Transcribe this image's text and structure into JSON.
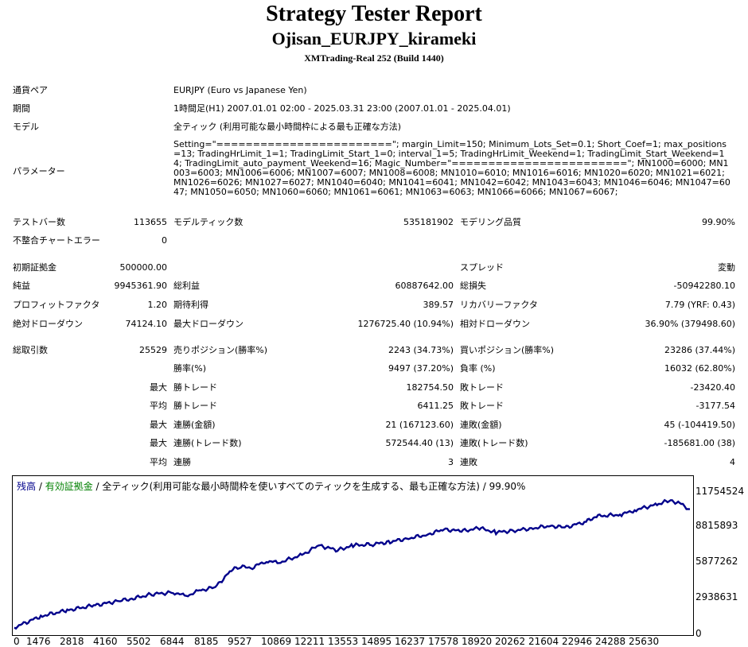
{
  "header": {
    "title": "Strategy Tester Report",
    "ea_name": "Ojisan_EURJPY_kirameki",
    "server": "XMTrading-Real 252 (Build 1440)"
  },
  "info": {
    "symbol_label": "通貨ペア",
    "symbol_value": "EURJPY (Euro vs Japanese Yen)",
    "period_label": "期間",
    "period_value": "1時間足(H1) 2007.01.01 02:00 - 2025.03.31 23:00 (2007.01.01 - 2025.04.01)",
    "model_label": "モデル",
    "model_value": "全ティック (利用可能な最小時間枠による最も正確な方法)",
    "params_label": "パラメーター",
    "params_value": "Setting=\"========================\"; margin_Limit=150; Minimum_Lots_Set=0.1; Short_Coef=1; max_positions=13; TradingHrLimit_1=1; TradingLimit_Start_1=0; interval_1=5; TradingHrLimit_Weekend=1; TradingLimit_Start_Weekend=14; TradingLimit_auto_payment_Weekend=16; Magic_Number=\"========================\"; MN1000=6000; MN1003=6003; MN1006=6006; MN1007=6007; MN1008=6008; MN1010=6010; MN1016=6016; MN1020=6020; MN1021=6021; MN1026=6026; MN1027=6027; MN1040=6040; MN1041=6041; MN1042=6042; MN1043=6043; MN1046=6046; MN1047=6047; MN1050=6050; MN1060=6060; MN1061=6061; MN1063=6063; MN1066=6066; MN1067=6067;"
  },
  "stats": {
    "bars_label": "テストバー数",
    "bars_value": "113655",
    "ticks_label": "モデルティック数",
    "ticks_value": "535181902",
    "quality_label": "モデリング品質",
    "quality_value": "99.90%",
    "mismatch_label": "不整合チャートエラー",
    "mismatch_value": "0",
    "deposit_label": "初期証拠金",
    "deposit_value": "500000.00",
    "spread_label": "スプレッド",
    "spread_value": "変動",
    "net_label": "純益",
    "net_value": "9945361.90",
    "gross_profit_label": "総利益",
    "gross_profit_value": "60887642.00",
    "gross_loss_label": "総損失",
    "gross_loss_value": "-50942280.10",
    "pf_label": "プロフィットファクタ",
    "pf_value": "1.20",
    "expected_label": "期待利得",
    "expected_value": "389.57",
    "recovery_label": "リカバリーファクタ",
    "recovery_value": "7.79 (YRF: 0.43)",
    "abs_dd_label": "絶対ドローダウン",
    "abs_dd_value": "74124.10",
    "max_dd_label": "最大ドローダウン",
    "max_dd_value": "1276725.40 (10.94%)",
    "rel_dd_label": "相対ドローダウン",
    "rel_dd_value": "36.90% (379498.60)",
    "trades_label": "総取引数",
    "trades_value": "25529",
    "short_label": "売りポジション(勝率%)",
    "short_value": "2243 (34.73%)",
    "long_label": "買いポジション(勝率%)",
    "long_value": "23286 (37.44%)",
    "win_rate_label": "勝率(%)",
    "win_rate_value": "9497 (37.20%)",
    "loss_rate_label": "負率 (%)",
    "loss_rate_value": "16032 (62.80%)",
    "max_prefix": "最大",
    "avg_prefix": "平均",
    "largest_win_label": "勝トレード",
    "largest_win_value": "182754.50",
    "largest_loss_label": "敗トレード",
    "largest_loss_value": "-23420.40",
    "avg_win_label": "勝トレード",
    "avg_win_value": "6411.25",
    "avg_loss_label": "敗トレード",
    "avg_loss_value": "-3177.54",
    "max_consec_win_money_label": "連勝(金額)",
    "max_consec_win_money_value": "21 (167123.60)",
    "max_consec_loss_money_label": "連敗(金額)",
    "max_consec_loss_money_value": "45 (-104419.50)",
    "max_consec_win_count_label": "連勝(トレード数)",
    "max_consec_win_count_value": "572544.40 (13)",
    "max_consec_loss_count_label": "連敗(トレード数)",
    "max_consec_loss_count_value": "-185681.00 (38)",
    "avg_consec_win_label": "連勝",
    "avg_consec_win_value": "3",
    "avg_consec_loss_label": "連敗",
    "avg_consec_loss_value": "4"
  },
  "chart_legend": {
    "balance": "残高",
    "sep1": " / ",
    "equity": "有効証拠金",
    "sep2": " / ",
    "desc": "全ティック(利用可能な最小時間枠を使いすべてのティックを生成する、最も正確な方法) / 99.90%",
    "balance_color": "#00008B",
    "equity_color": "#008000"
  },
  "chart_data": {
    "type": "line",
    "title": "",
    "xlabel": "",
    "ylabel": "",
    "x_ticks": [
      "0",
      "1476",
      "2818",
      "4160",
      "5502",
      "6844",
      "8185",
      "9527",
      "10869",
      "12211",
      "13553",
      "14895",
      "16237",
      "17578",
      "18920",
      "20262",
      "21604",
      "22946",
      "24288",
      "25630"
    ],
    "y_ticks": [
      "11754524",
      "8815893",
      "5877262",
      "2938631",
      "0"
    ],
    "xlim": [
      0,
      25529
    ],
    "ylim": [
      0,
      11754524
    ],
    "grid": false,
    "series": [
      {
        "name": "残高",
        "color": "#00008B",
        "x": [
          0,
          1000,
          2000,
          3000,
          4000,
          4500,
          5200,
          6000,
          6500,
          7000,
          7600,
          8200,
          8500,
          9000,
          9527,
          10000,
          10869,
          11500,
          12211,
          12800,
          13553,
          14200,
          14895,
          15600,
          16237,
          16900,
          17578,
          18200,
          18920,
          19600,
          20262,
          20800,
          21604,
          22000,
          22946,
          23500,
          24288,
          24800,
          25200,
          25529
        ],
        "values": [
          500000,
          1450000,
          1950000,
          2350000,
          2750000,
          2950000,
          3300000,
          3450000,
          3150000,
          3600000,
          3900000,
          5300000,
          5600000,
          5550000,
          6100000,
          5950000,
          6600000,
          7400000,
          7000000,
          7400000,
          7500000,
          7700000,
          8000000,
          8300000,
          8750000,
          8600000,
          8850000,
          8500000,
          8650000,
          8850000,
          9050000,
          8900000,
          9400000,
          9850000,
          10000000,
          10400000,
          10850000,
          11200000,
          10850000,
          10445361.9
        ]
      }
    ]
  }
}
